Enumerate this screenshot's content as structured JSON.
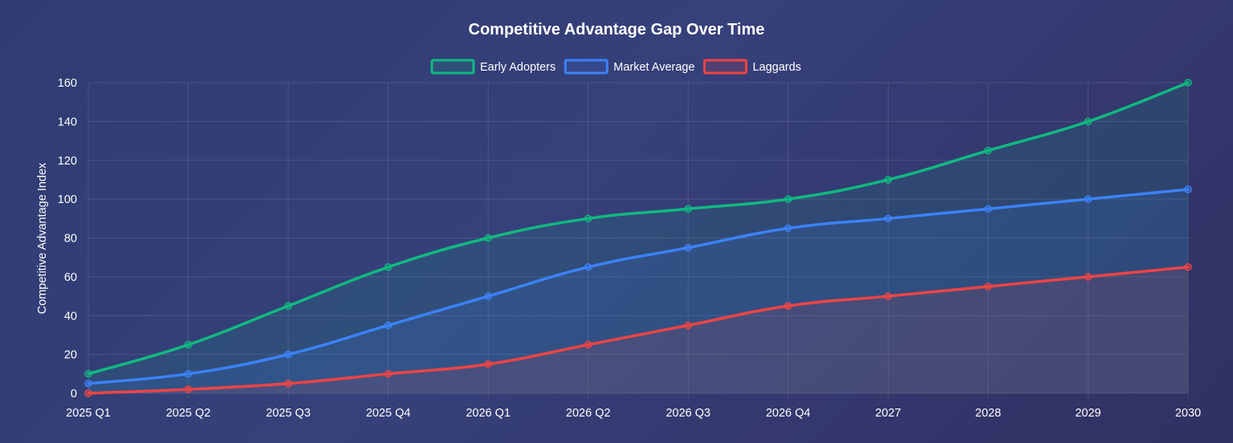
{
  "chart_data": {
    "type": "line",
    "title": "Competitive Advantage Gap Over Time",
    "xlabel": "",
    "ylabel": "Competitive Advantage Index",
    "categories": [
      "2025 Q1",
      "2025 Q2",
      "2025 Q3",
      "2025 Q4",
      "2026 Q1",
      "2026 Q2",
      "2026 Q3",
      "2026 Q4",
      "2027",
      "2028",
      "2029",
      "2030"
    ],
    "ylim": [
      0,
      160
    ],
    "yticks": [
      0,
      20,
      40,
      60,
      80,
      100,
      120,
      140,
      160
    ],
    "grid": true,
    "legend_position": "top-center",
    "series": [
      {
        "name": "Early Adopters",
        "color": "#10b981",
        "fill": true,
        "values": [
          10,
          25,
          45,
          65,
          80,
          90,
          95,
          100,
          110,
          125,
          140,
          160
        ]
      },
      {
        "name": "Market Average",
        "color": "#3b82f6",
        "fill": true,
        "values": [
          5,
          10,
          20,
          35,
          50,
          65,
          75,
          85,
          90,
          95,
          100,
          105
        ]
      },
      {
        "name": "Laggards",
        "color": "#ef4444",
        "fill": true,
        "values": [
          0,
          2,
          5,
          10,
          15,
          25,
          35,
          45,
          50,
          55,
          60,
          65
        ]
      }
    ]
  }
}
